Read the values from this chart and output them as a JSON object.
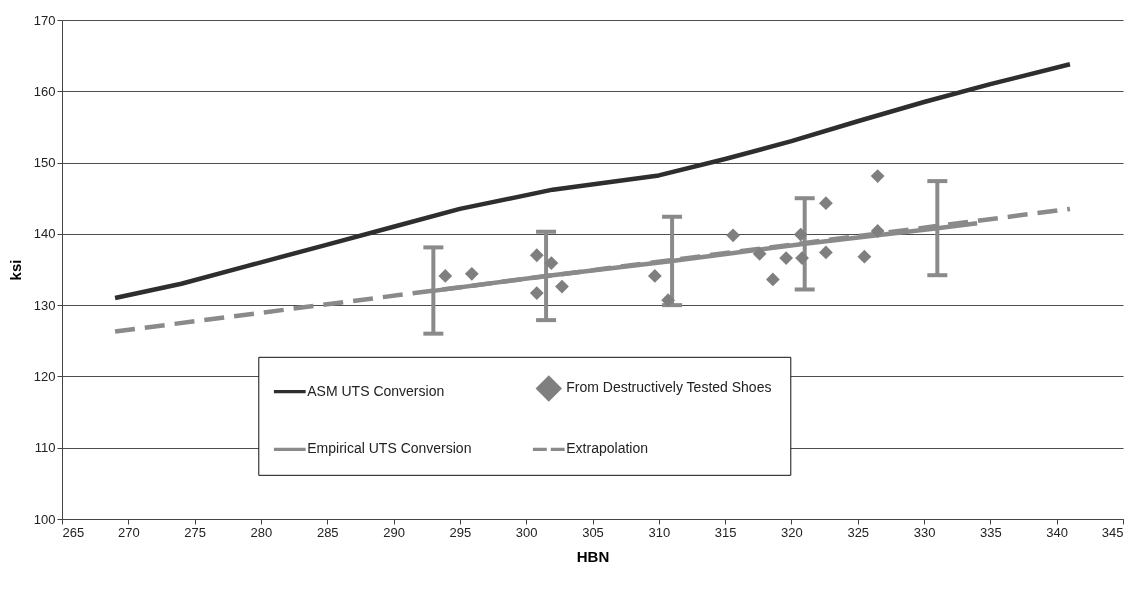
{
  "chart_data": {
    "type": "line",
    "xlabel": "HBN",
    "ylabel": "ksi",
    "xlim": [
      265,
      345
    ],
    "xticks": [
      265,
      270,
      275,
      280,
      285,
      290,
      295,
      300,
      305,
      310,
      315,
      320,
      325,
      330,
      335,
      340,
      345
    ],
    "ylim": [
      100,
      170
    ],
    "yticks": [
      100,
      110,
      120,
      130,
      140,
      150,
      160,
      170
    ],
    "grid": "y",
    "legend": "bottom",
    "series": [
      {
        "name": "ASM UTS Conversion",
        "type": "line",
        "color": "#2e2e2e",
        "line_style": "solid",
        "x": [
          269,
          274,
          279,
          285,
          290,
          295,
          302,
          310,
          315,
          320,
          325,
          330,
          335,
          341
        ],
        "values": [
          131,
          133,
          135.5,
          138.5,
          141,
          143.5,
          146.2,
          148.2,
          150.5,
          153,
          155.8,
          158.5,
          161,
          163.8
        ]
      },
      {
        "name": "From Destructively Tested Shoes",
        "type": "scatter",
        "marker": "diamond",
        "color": "#7f7f7f",
        "x": [
          293.9,
          295.9,
          300.8,
          301.9,
          300.8,
          302.7,
          309.7,
          310.7,
          315.6,
          317.6,
          318.6,
          319.6,
          320.7,
          320.8,
          322.6,
          322.6,
          325.5,
          326.5,
          326.5
        ],
        "values": [
          134.1,
          134.4,
          137.0,
          135.9,
          131.7,
          132.6,
          134.1,
          130.7,
          139.8,
          137.2,
          133.6,
          136.6,
          139.9,
          136.6,
          144.3,
          137.4,
          136.8,
          148.1,
          140.4
        ]
      },
      {
        "name": "Empirical UTS Conversion",
        "type": "line",
        "color": "#8a8a8a",
        "line_style": "solid",
        "x": [
          293,
          301.5,
          311,
          321,
          331,
          334
        ],
        "values": [
          132.0,
          134.1,
          136.2,
          138.6,
          140.8,
          141.5
        ],
        "errors": [
          [
            126.0,
            138.1
          ],
          [
            127.9,
            140.3
          ],
          [
            130.0,
            142.4
          ],
          [
            132.2,
            145.0
          ],
          [
            134.2,
            147.4
          ],
          null
        ]
      },
      {
        "name": "Extrapolation",
        "type": "line",
        "color": "#8a8a8a",
        "line_style": "dashed",
        "x": [
          269,
          341
        ],
        "values": [
          126.3,
          143.5
        ]
      }
    ]
  }
}
